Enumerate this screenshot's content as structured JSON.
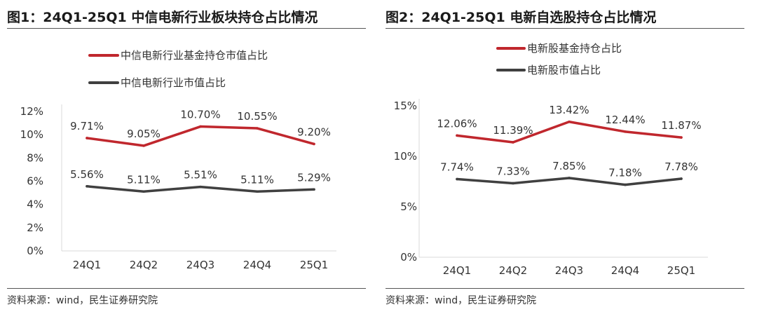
{
  "charts": [
    {
      "title": "图1：24Q1-25Q1 中信电新行业板块持仓占比情况",
      "source": "资料来源：wind，民生证券研究院",
      "legend_items": [
        "中信电新行业基金持仓市值占比",
        "中信电新行业市值占比"
      ],
      "y_ticks": [
        "0%",
        "2%",
        "4%",
        "6%",
        "8%",
        "10%",
        "12%"
      ],
      "x_ticks": [
        "24Q1",
        "24Q2",
        "24Q3",
        "24Q4",
        "25Q1"
      ],
      "label_text": [
        [
          "9.71%",
          "9.05%",
          "10.70%",
          "10.55%",
          "9.20%"
        ],
        [
          "5.56%",
          "5.11%",
          "5.51%",
          "5.11%",
          "5.29%"
        ]
      ]
    },
    {
      "title": "图2：24Q1-25Q1 电新自选股持仓占比情况",
      "source": "资料来源：wind，民生证券研究院",
      "legend_items": [
        "电新股基金持仓占比",
        "电新股市值占比"
      ],
      "y_ticks": [
        "0%",
        "5%",
        "10%",
        "15%"
      ],
      "x_ticks": [
        "24Q1",
        "24Q2",
        "24Q3",
        "24Q4",
        "25Q1"
      ],
      "label_text": [
        [
          "12.06%",
          "11.39%",
          "13.42%",
          "12.44%",
          "11.87%"
        ],
        [
          "7.74%",
          "7.33%",
          "7.85%",
          "7.18%",
          "7.78%"
        ]
      ]
    }
  ],
  "chart_data": [
    {
      "type": "line",
      "title": "图1：24Q1-25Q1 中信电新行业板块持仓占比情况",
      "x": [
        "24Q1",
        "24Q2",
        "24Q3",
        "24Q4",
        "25Q1"
      ],
      "ylim": [
        0,
        12
      ],
      "y_unit": "%",
      "grid": false,
      "legend_position": "top-left",
      "series": [
        {
          "name": "中信电新行业基金持仓市值占比",
          "color": "#C0272D",
          "values": [
            9.71,
            9.05,
            10.7,
            10.55,
            9.2
          ]
        },
        {
          "name": "中信电新行业市值占比",
          "color": "#404040",
          "values": [
            5.56,
            5.11,
            5.51,
            5.11,
            5.29
          ]
        }
      ]
    },
    {
      "type": "line",
      "title": "图2：24Q1-25Q1 电新自选股持仓占比情况",
      "x": [
        "24Q1",
        "24Q2",
        "24Q3",
        "24Q4",
        "25Q1"
      ],
      "ylim": [
        0,
        15
      ],
      "y_unit": "%",
      "grid": false,
      "legend_position": "top-left",
      "series": [
        {
          "name": "电新股基金持仓占比",
          "color": "#C0272D",
          "values": [
            12.06,
            11.39,
            13.42,
            12.44,
            11.87
          ]
        },
        {
          "name": "电新股市值占比",
          "color": "#404040",
          "values": [
            7.74,
            7.33,
            7.85,
            7.18,
            7.78
          ]
        }
      ]
    }
  ]
}
